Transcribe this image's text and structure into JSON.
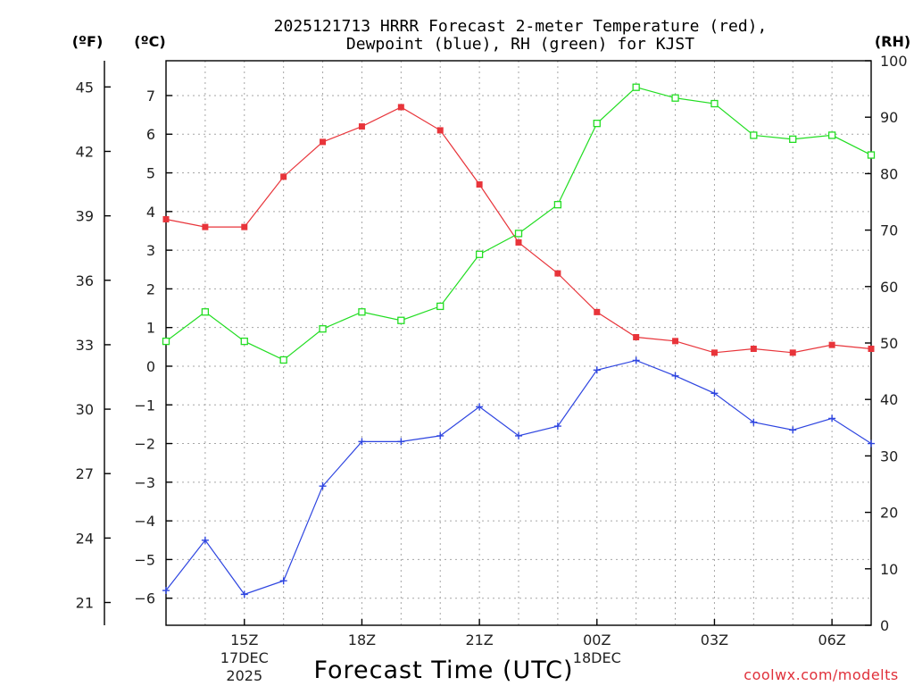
{
  "chart_data": {
    "type": "line",
    "title": [
      "2025121713 HRRR Forecast 2-meter Temperature (red),",
      "Dewpoint (blue), RH (green) for KJST"
    ],
    "xlabel": "Forecast Time (UTC)",
    "credit": "coolwx.com/modelts",
    "units": {
      "fahrenheit": "(ºF)",
      "celsius": "(ºC)",
      "rh": "(RH)"
    },
    "x_ticks": [
      {
        "index": 2,
        "label": "15Z",
        "sub": [
          "17DEC",
          "2025"
        ]
      },
      {
        "index": 5,
        "label": "18Z",
        "sub": []
      },
      {
        "index": 8,
        "label": "21Z",
        "sub": []
      },
      {
        "index": 11,
        "label": "00Z",
        "sub": [
          "18DEC"
        ]
      },
      {
        "index": 14,
        "label": "03Z",
        "sub": []
      },
      {
        "index": 17,
        "label": "06Z",
        "sub": []
      }
    ],
    "x_range": [
      0,
      18
    ],
    "celsius_axis": {
      "ylim": [
        -6.7,
        7.9
      ],
      "ticks": [
        -6,
        -5,
        -4,
        -3,
        -2,
        -1,
        0,
        1,
        2,
        3,
        4,
        5,
        6,
        7
      ],
      "tick_labels": [
        "−6",
        "−5",
        "−4",
        "−3",
        "−2",
        "−1",
        "0",
        "1",
        "2",
        "3",
        "4",
        "5",
        "6",
        "7"
      ]
    },
    "fahrenheit_axis": {
      "ticks": [
        21,
        24,
        27,
        30,
        33,
        36,
        39,
        42,
        45
      ],
      "tick_labels": [
        "21",
        "24",
        "27",
        "30",
        "33",
        "36",
        "39",
        "42",
        "45"
      ]
    },
    "rh_axis": {
      "ylim": [
        0,
        100
      ],
      "ticks": [
        0,
        10,
        20,
        30,
        40,
        50,
        60,
        70,
        80,
        90,
        100
      ],
      "tick_labels": [
        "0",
        "10",
        "20",
        "30",
        "40",
        "50",
        "60",
        "70",
        "80",
        "90",
        "100"
      ]
    },
    "series": [
      {
        "name": "Temperature",
        "axis": "celsius",
        "color": "#e8343a",
        "marker": "filled-square",
        "values": [
          3.8,
          3.6,
          3.6,
          4.9,
          5.8,
          6.2,
          6.7,
          6.1,
          4.7,
          3.2,
          2.4,
          1.4,
          0.75,
          0.65,
          0.35,
          0.45,
          0.35,
          0.55,
          0.45
        ]
      },
      {
        "name": "Dewpoint",
        "axis": "celsius",
        "color": "#2e45e0",
        "marker": "plus",
        "values": [
          -5.8,
          -4.5,
          -5.9,
          -5.55,
          -3.1,
          -1.95,
          -1.95,
          -1.8,
          -1.05,
          -1.8,
          -1.55,
          -0.1,
          0.15,
          -0.25,
          -0.7,
          -1.45,
          -1.65,
          -1.35,
          -2.0
        ]
      },
      {
        "name": "RH",
        "axis": "rh",
        "color": "#22dd22",
        "marker": "open-square",
        "values": [
          50.3,
          55.5,
          50.3,
          47.0,
          52.5,
          55.5,
          54.0,
          56.5,
          65.7,
          69.4,
          74.5,
          88.9,
          95.3,
          93.4,
          92.4,
          86.8,
          86.1,
          86.8,
          83.3
        ]
      }
    ],
    "grid": true
  }
}
